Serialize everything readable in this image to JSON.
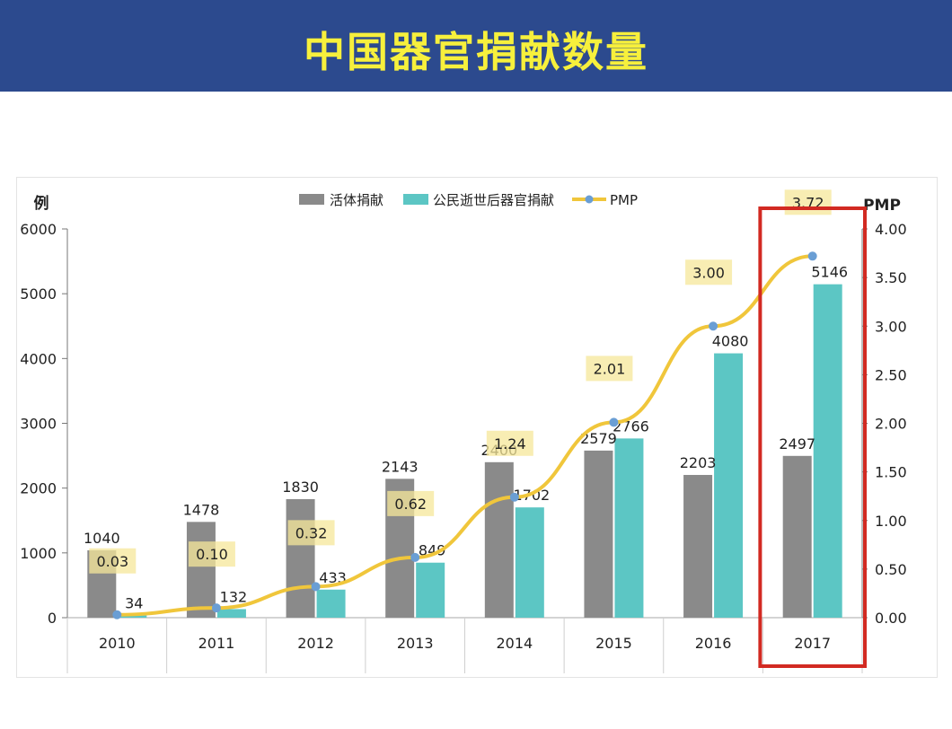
{
  "title": "中国器官捐献数量",
  "chart_data": {
    "type": "bar",
    "categories": [
      "2010",
      "2011",
      "2012",
      "2013",
      "2014",
      "2015",
      "2016",
      "2017"
    ],
    "y_left_label": "例",
    "y_right_label": "PMP",
    "ylim": [
      0,
      6000
    ],
    "y_left_ticks": [
      "0",
      "1000",
      "2000",
      "3000",
      "4000",
      "5000",
      "6000"
    ],
    "y2lim": [
      0,
      4
    ],
    "y_right_ticks": [
      "0.00",
      "0.50",
      "1.00",
      "1.50",
      "2.00",
      "2.50",
      "3.00",
      "3.50",
      "4.00"
    ],
    "series": [
      {
        "name": "活体捐献",
        "type": "bar",
        "color": "#8a8a8a",
        "values": [
          1040,
          1478,
          1830,
          2143,
          2400,
          2579,
          2203,
          2497
        ]
      },
      {
        "name": "公民逝世后器官捐献",
        "type": "bar",
        "color": "#5cc6c4",
        "values": [
          34,
          132,
          433,
          849,
          1702,
          2766,
          4080,
          5146
        ]
      },
      {
        "name": "PMP",
        "type": "line",
        "axis": "right",
        "color": "#f0c63b",
        "marker_color": "#6a9ed4",
        "values": [
          0.03,
          0.1,
          0.32,
          0.62,
          1.24,
          2.01,
          3.0,
          3.72
        ],
        "labels": [
          "0.03",
          "0.10",
          "0.32",
          "0.62",
          "1.24",
          "2.01",
          "3.00",
          "3.72"
        ]
      }
    ],
    "legend_position": "top-center",
    "highlight_category": "2017",
    "highlight_color": "#d22a22",
    "grid": false
  }
}
